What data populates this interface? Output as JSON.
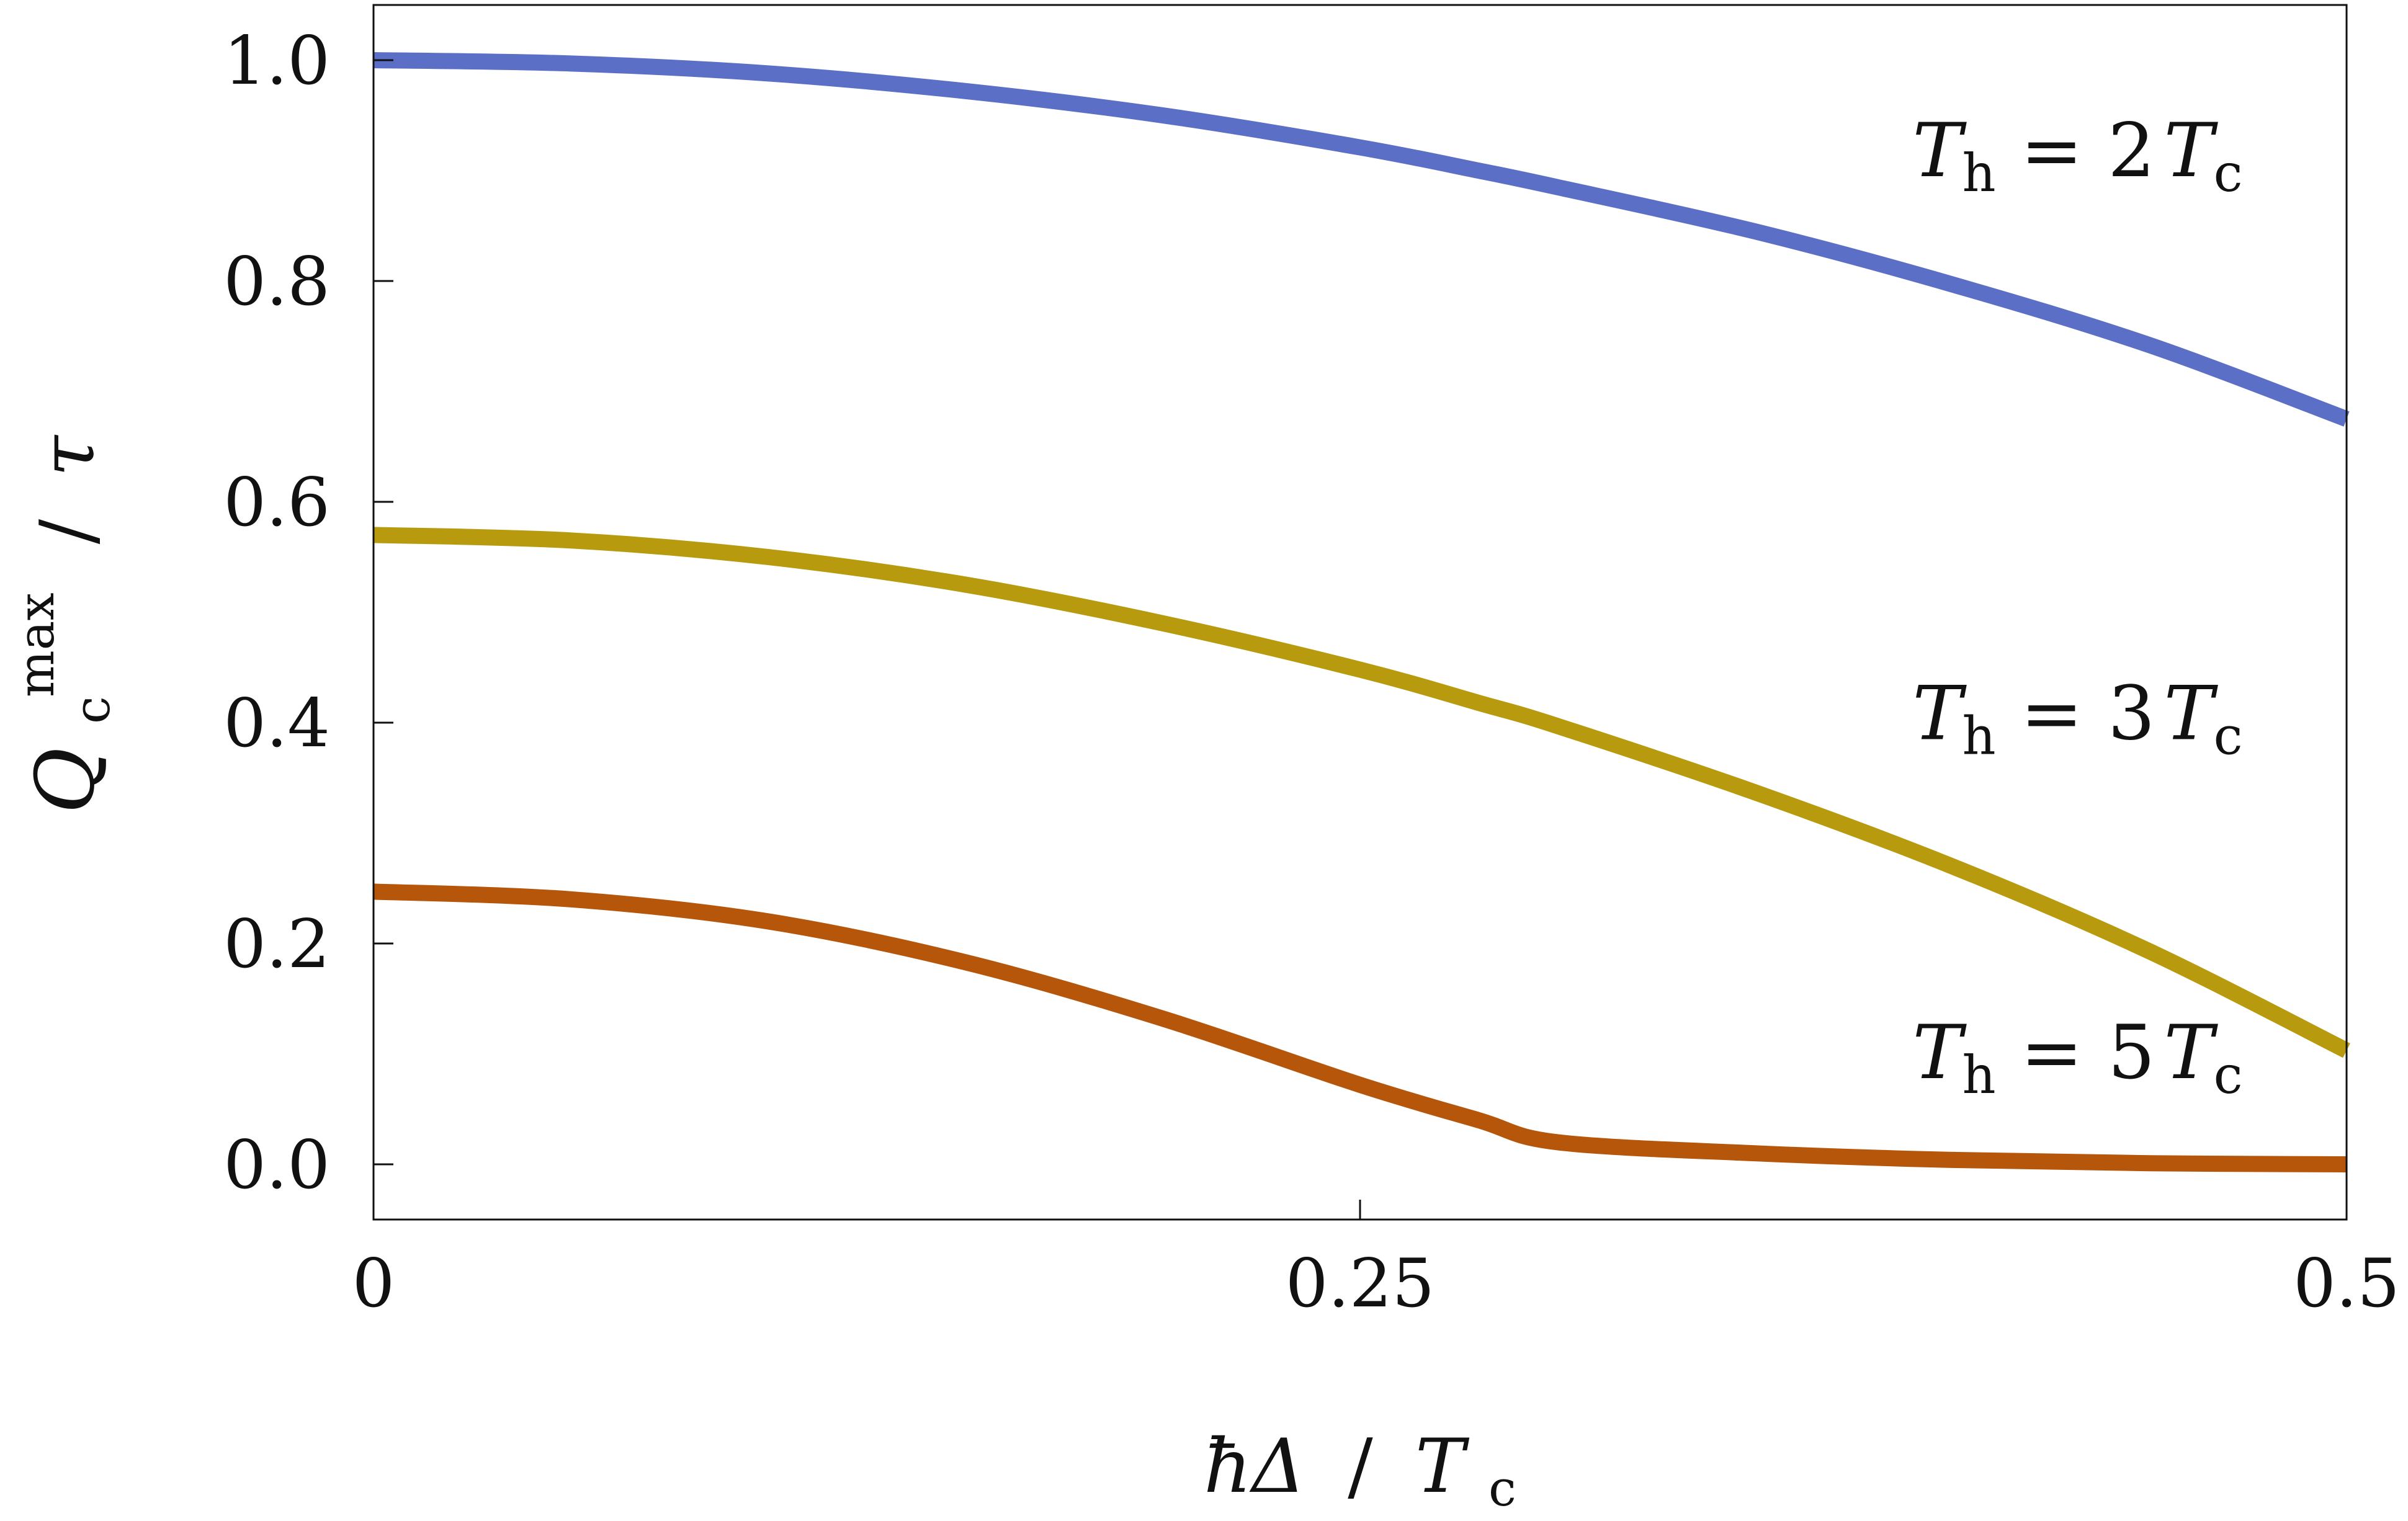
{
  "chart_data": {
    "type": "line",
    "title": "",
    "xlabel": {
      "prefix": "ħΔ",
      "sep": "/",
      "var": "T",
      "sub": "c"
    },
    "ylabel": {
      "var": "Q",
      "sub": "c",
      "sup": "max",
      "sep": "/",
      "denom": "τ"
    },
    "xlim": [
      0,
      0.5
    ],
    "ylim": [
      -0.05,
      1.05
    ],
    "xticks": [
      {
        "value": 0,
        "label": "0"
      },
      {
        "value": 0.25,
        "label": "0.25"
      },
      {
        "value": 0.5,
        "label": "0.5"
      }
    ],
    "yticks": [
      {
        "value": 0.0,
        "label": "0.0"
      },
      {
        "value": 0.2,
        "label": "0.2"
      },
      {
        "value": 0.4,
        "label": "0.4"
      },
      {
        "value": 0.6,
        "label": "0.6"
      },
      {
        "value": 0.8,
        "label": "0.8"
      },
      {
        "value": 1.0,
        "label": "1.0"
      }
    ],
    "grid": false,
    "x": [
      0,
      0.05,
      0.1,
      0.15,
      0.2,
      0.25,
      0.28,
      0.3,
      0.35,
      0.4,
      0.45,
      0.5
    ],
    "series": [
      {
        "name": "Th = 2Tc",
        "label": {
          "lhs": "T",
          "lhs_sub": "h",
          "eq": "=",
          "coef": "2",
          "rhs": "T",
          "rhs_sub": "c"
        },
        "label_at": [
          0.39,
          0.895
        ],
        "color": "#5c6fc6",
        "values": [
          1.0,
          0.997,
          0.988,
          0.972,
          0.95,
          0.921,
          0.9,
          0.885,
          0.845,
          0.797,
          0.742,
          0.675
        ]
      },
      {
        "name": "Th = 3Tc",
        "label": {
          "lhs": "T",
          "lhs_sub": "h",
          "eq": "=",
          "coef": "3",
          "rhs": "T",
          "rhs_sub": "c"
        },
        "label_at": [
          0.39,
          0.385
        ],
        "color": "#b89a0e",
        "values": [
          0.57,
          0.565,
          0.55,
          0.525,
          0.49,
          0.448,
          0.418,
          0.397,
          0.337,
          0.27,
          0.193,
          0.103
        ]
      },
      {
        "name": "Th = 5Tc",
        "label": {
          "lhs": "T",
          "lhs_sub": "h",
          "eq": "=",
          "coef": "5",
          "rhs": "T",
          "rhs_sub": "c"
        },
        "label_at": [
          0.39,
          0.078
        ],
        "color": "#b5560b",
        "values": [
          0.247,
          0.24,
          0.22,
          0.183,
          0.132,
          0.072,
          0.04,
          0.02,
          0.01,
          0.004,
          0.001,
          0.0
        ]
      }
    ]
  }
}
